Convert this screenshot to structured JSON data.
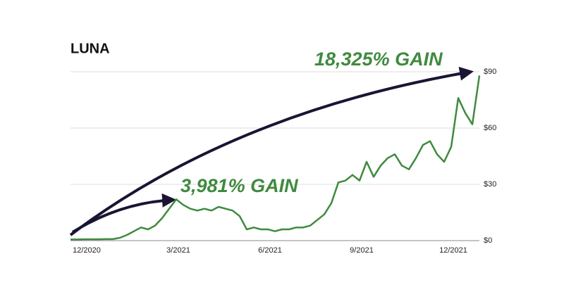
{
  "chart_data": {
    "type": "line",
    "title": "LUNA",
    "annotations": [
      "18,325% GAIN",
      "3,981% GAIN"
    ],
    "categories": [
      null,
      null,
      "12/2020",
      null,
      null,
      null,
      null,
      null,
      null,
      null,
      null,
      null,
      null,
      null,
      null,
      "3/2021",
      null,
      null,
      null,
      null,
      null,
      null,
      null,
      null,
      null,
      null,
      null,
      null,
      "6/2021",
      null,
      null,
      null,
      null,
      null,
      null,
      null,
      null,
      null,
      null,
      null,
      null,
      "9/2021",
      null,
      null,
      null,
      null,
      null,
      null,
      null,
      null,
      null,
      null,
      null,
      null,
      "12/2021",
      null,
      null,
      null,
      null
    ],
    "values": [
      0.6,
      0.6,
      0.7,
      0.7,
      0.7,
      0.8,
      0.8,
      1.5,
      3,
      5,
      7,
      6,
      8,
      12,
      17,
      22,
      19,
      17,
      16,
      17,
      16,
      18,
      17,
      16,
      13,
      6,
      7,
      6,
      6,
      5,
      6,
      6,
      7,
      7,
      8,
      11,
      14,
      20,
      31,
      32,
      35,
      32,
      42,
      34,
      40,
      44,
      46,
      40,
      38,
      44,
      51,
      53,
      46,
      42,
      50,
      76,
      68,
      62,
      88
    ],
    "color": "#3f8a3f",
    "ylim": [
      0,
      90
    ],
    "yticks": [
      {
        "value": 0,
        "label": "$0"
      },
      {
        "value": 30,
        "label": "$30"
      },
      {
        "value": 60,
        "label": "$60"
      },
      {
        "value": 90,
        "label": "$90"
      }
    ],
    "grid": true
  }
}
